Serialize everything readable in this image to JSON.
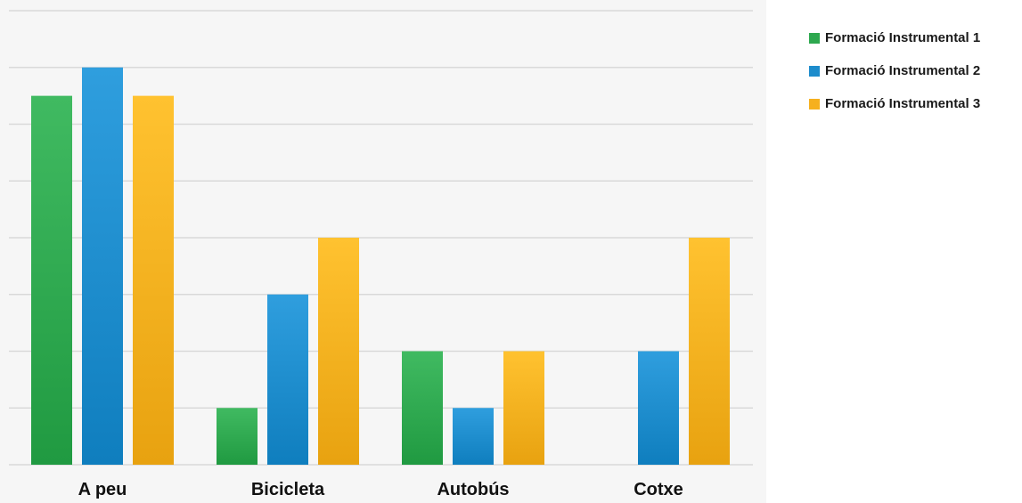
{
  "chart_data": {
    "type": "bar",
    "categories": [
      "A peu",
      "Bicicleta",
      "Autobús",
      "Cotxe"
    ],
    "series": [
      {
        "name": "Formació Instrumental 1",
        "color": "#2ea84f",
        "values": [
          6.5,
          1,
          2,
          0
        ]
      },
      {
        "name": "Formació Instrumental 2",
        "color": "#1d8ccc",
        "values": [
          7,
          3,
          1,
          2
        ]
      },
      {
        "name": "Formació Instrumental 3",
        "color": "#f6b01e",
        "values": [
          6.5,
          4,
          2,
          4
        ]
      }
    ],
    "ylim": [
      0,
      8
    ],
    "yticks": [
      0,
      1,
      2,
      3,
      4,
      5,
      6,
      7,
      8
    ],
    "grid": true,
    "legend_position": "right"
  }
}
